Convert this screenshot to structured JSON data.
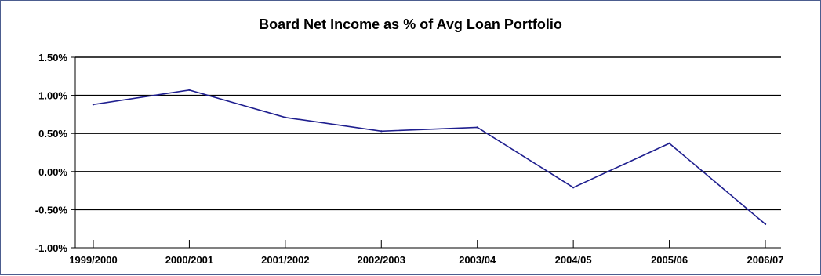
{
  "chart_data": {
    "type": "line",
    "title": "Board Net Income as % of Avg Loan Portfolio",
    "xlabel": "",
    "ylabel": "",
    "categories": [
      "1999/2000",
      "2000/2001",
      "2001/2002",
      "2002/2003",
      "2003/04",
      "2004/05",
      "2005/06",
      "2006/07"
    ],
    "series": [
      {
        "values": [
          0.88,
          1.07,
          0.71,
          0.53,
          0.58,
          -0.21,
          0.37,
          -0.69
        ],
        "color": "#1f1f8f"
      }
    ],
    "yticks": [
      1.5,
      1.0,
      0.5,
      0.0,
      -0.5,
      -1.0
    ],
    "ytick_labels": [
      "1.50%",
      "1.00%",
      "0.50%",
      "0.00%",
      "-0.50%",
      "-1.00%"
    ],
    "ylim": [
      -1.0,
      1.5
    ],
    "grid": true,
    "legend": "none"
  }
}
